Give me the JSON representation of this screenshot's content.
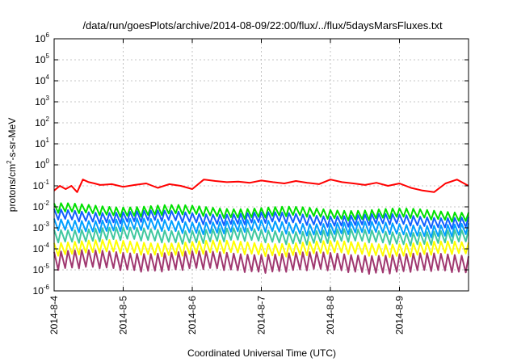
{
  "chart_data": {
    "type": "line",
    "title": "/data/run/goesPlots/archive/2014-08-09/22:00/flux/../flux/5daysMarsFluxes.txt",
    "xlabel": "Coordinated Universal Time (UTC)",
    "ylabel": {
      "base": "protons/cm",
      "sup": "2",
      "rest": "-s-sr-MeV"
    },
    "yscale": "log",
    "ylim": [
      1e-06,
      1000000.0
    ],
    "xlim": [
      "2014-08-04",
      "2014-08-10"
    ],
    "x_tick_labels": [
      "2014-8-4",
      "2014-8-5",
      "2014-8-6",
      "2014-8-7",
      "2014-8-8",
      "2014-8-9"
    ],
    "y_ticks": [
      {
        "base": "10",
        "exp": "-6"
      },
      {
        "base": "10",
        "exp": "-5"
      },
      {
        "base": "10",
        "exp": "-4"
      },
      {
        "base": "10",
        "exp": "-3"
      },
      {
        "base": "10",
        "exp": "-2"
      },
      {
        "base": "10",
        "exp": "-1"
      },
      {
        "base": "10",
        "exp": "0"
      },
      {
        "base": "10",
        "exp": "1"
      },
      {
        "base": "10",
        "exp": "2"
      },
      {
        "base": "10",
        "exp": "3"
      },
      {
        "base": "10",
        "exp": "4"
      },
      {
        "base": "10",
        "exp": "5"
      },
      {
        "base": "10",
        "exp": "6"
      }
    ],
    "grid": true,
    "legend": "none",
    "series": [
      {
        "color": "#ff0000",
        "x": [
          "2014-08-04T00:00",
          "2014-08-04T02:00",
          "2014-08-04T04:00",
          "2014-08-04T06:00",
          "2014-08-04T08:00",
          "2014-08-04T10:00",
          "2014-08-04T12:00",
          "2014-08-04T14:00",
          "2014-08-04T16:00",
          "2014-08-04T20:00",
          "2014-08-05T00:00",
          "2014-08-05T04:00",
          "2014-08-05T08:00",
          "2014-08-05T12:00",
          "2014-08-05T16:00",
          "2014-08-05T20:00",
          "2014-08-06T00:00",
          "2014-08-06T04:00",
          "2014-08-06T08:00",
          "2014-08-06T12:00",
          "2014-08-06T16:00",
          "2014-08-06T20:00",
          "2014-08-07T00:00",
          "2014-08-07T04:00",
          "2014-08-07T08:00",
          "2014-08-07T12:00",
          "2014-08-07T16:00",
          "2014-08-07T20:00",
          "2014-08-08T00:00",
          "2014-08-08T04:00",
          "2014-08-08T08:00",
          "2014-08-08T12:00",
          "2014-08-08T16:00",
          "2014-08-08T20:00",
          "2014-08-09T00:00",
          "2014-08-09T04:00",
          "2014-08-09T08:00",
          "2014-08-09T12:00",
          "2014-08-09T16:00",
          "2014-08-09T20:00",
          "2014-08-10T00:00"
        ],
        "values": [
          0.06,
          0.1,
          0.07,
          0.1,
          0.05,
          0.2,
          0.15,
          0.13,
          0.11,
          0.12,
          0.09,
          0.11,
          0.13,
          0.08,
          0.12,
          0.1,
          0.07,
          0.2,
          0.17,
          0.15,
          0.16,
          0.14,
          0.18,
          0.15,
          0.13,
          0.17,
          0.14,
          0.12,
          0.2,
          0.15,
          0.13,
          0.11,
          0.14,
          0.1,
          0.13,
          0.08,
          0.06,
          0.05,
          0.13,
          0.2,
          0.1
        ]
      },
      {
        "color": "#00e000",
        "x": [
          "2014-08-04T00:00",
          "2014-08-10T00:00"
        ],
        "values": [
          0.008,
          0.004
        ],
        "cycles": 60,
        "amplitude_decades": 0.4
      },
      {
        "color": "#1060ff",
        "x": [
          "2014-08-04T00:00",
          "2014-08-10T00:00"
        ],
        "values": [
          0.004,
          0.002
        ],
        "cycles": 60,
        "amplitude_decades": 0.45
      },
      {
        "color": "#00a0ff",
        "x": [
          "2014-08-04T00:00",
          "2014-08-10T00:00"
        ],
        "values": [
          0.0015,
          0.0008
        ],
        "cycles": 60,
        "amplitude_decades": 0.5
      },
      {
        "color": "#40c8a0",
        "x": [
          "2014-08-04T00:00",
          "2014-08-10T00:00"
        ],
        "values": [
          0.0005,
          0.00035
        ],
        "cycles": 60,
        "amplitude_decades": 0.55
      },
      {
        "color": "#ffff00",
        "x": [
          "2014-08-04T00:00",
          "2014-08-10T00:00"
        ],
        "values": [
          0.00012,
          0.0001
        ],
        "cycles": 60,
        "amplitude_decades": 0.55
      },
      {
        "color": "#a03870",
        "x": [
          "2014-08-04T00:00",
          "2014-08-10T00:00"
        ],
        "values": [
          3e-05,
          2e-05
        ],
        "cycles": 60,
        "amplitude_decades": 0.8
      }
    ]
  }
}
